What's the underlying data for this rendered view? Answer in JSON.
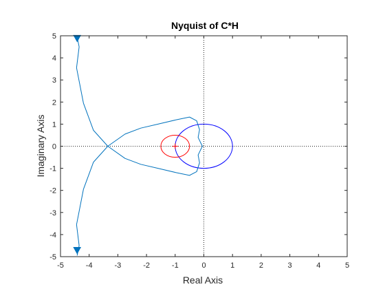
{
  "chart_data": {
    "type": "line",
    "title": "Nyquist of C*H",
    "xlabel": "Real Axis",
    "ylabel": "Imaginary Axis",
    "xlim": [
      -5,
      5
    ],
    "ylim": [
      -5,
      5
    ],
    "xticks": [
      -5,
      -4,
      -3,
      -2,
      -1,
      0,
      1,
      2,
      3,
      4,
      5
    ],
    "yticks": [
      -5,
      -4,
      -3,
      -2,
      -1,
      0,
      1,
      2,
      3,
      4,
      5
    ],
    "xtick_labels": [
      "-5",
      "-4",
      "-3",
      "-2",
      "-1",
      "0",
      "1",
      "2",
      "3",
      "4",
      "5"
    ],
    "ytick_labels": [
      "5",
      "4",
      "3",
      "2",
      "1",
      "0",
      "-1",
      "-2",
      "-3",
      "-4",
      "-5"
    ],
    "grid": false,
    "zero_lines": "dotted",
    "critical_point": [
      -1,
      0
    ],
    "colors": {
      "nyquist": "#0072bd",
      "unit_circle": "#0000ff",
      "circle_around_critical": "#ff0000",
      "critical_marker": "#ff0000",
      "axes": "#262626",
      "zero_lines": "#262626"
    },
    "series": [
      {
        "role": "nyquist-curve",
        "color": "#0072bd",
        "points": [
          [
            -4.42,
            4.95
          ],
          [
            -4.35,
            4.5
          ],
          [
            -4.44,
            3.55
          ],
          [
            -4.2,
            1.95
          ],
          [
            -3.85,
            0.72
          ],
          [
            -3.35,
            0.0
          ],
          [
            -2.75,
            -0.55
          ],
          [
            -2.2,
            -0.82
          ],
          [
            -1.6,
            -1.0
          ],
          [
            -0.95,
            -1.2
          ],
          [
            -0.5,
            -1.32
          ],
          [
            -0.25,
            -1.15
          ],
          [
            -0.15,
            -0.75
          ],
          [
            -0.2,
            -0.4
          ],
          [
            -0.12,
            -0.18
          ],
          [
            -0.05,
            0.0
          ],
          [
            -0.12,
            0.18
          ],
          [
            -0.2,
            0.4
          ],
          [
            -0.15,
            0.75
          ],
          [
            -0.25,
            1.15
          ],
          [
            -0.5,
            1.32
          ],
          [
            -0.95,
            1.2
          ],
          [
            -1.6,
            1.0
          ],
          [
            -2.2,
            0.82
          ],
          [
            -2.75,
            0.55
          ],
          [
            -3.35,
            0.0
          ],
          [
            -3.85,
            -0.72
          ],
          [
            -4.2,
            -1.95
          ],
          [
            -4.44,
            -3.55
          ],
          [
            -4.35,
            -4.5
          ],
          [
            -4.42,
            -4.95
          ]
        ]
      }
    ],
    "arrows": [
      {
        "at": [
          -4.42,
          4.88
        ],
        "direction": "down"
      },
      {
        "at": [
          -4.42,
          -4.72
        ],
        "direction": "down"
      }
    ],
    "circles": [
      {
        "role": "unit-circle",
        "center": [
          0,
          0
        ],
        "radius": 1,
        "color": "#0000ff"
      },
      {
        "role": "circle-around-critical-point",
        "center": [
          -1,
          0
        ],
        "radius": 0.5,
        "color": "#ff0000"
      }
    ]
  }
}
